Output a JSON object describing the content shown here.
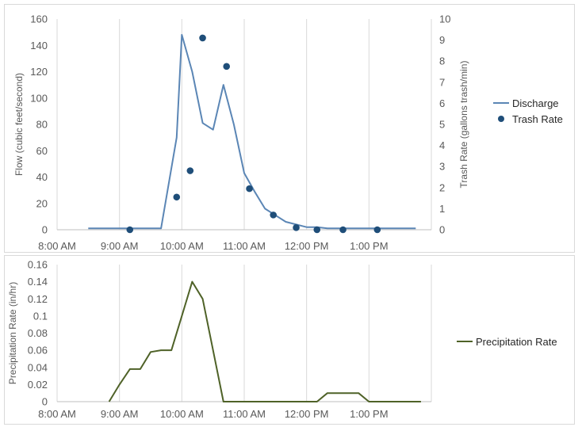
{
  "colors": {
    "discharge": "#5b86b5",
    "trash": "#1f4e79",
    "precip": "#4f6228",
    "grid": "#d9d9d9",
    "axis": "#bfbfbf",
    "text": "#595959"
  },
  "chart_data": [
    {
      "type": "line",
      "title": "",
      "xlabel": "",
      "ylabel": "Flow (cubic feet/second)",
      "y2label": "Trash Rate (gallons trash/min)",
      "x_ticks": [
        "8:00 AM",
        "9:00 AM",
        "10:00 AM",
        "11:00 AM",
        "12:00 PM",
        "1:00 PM"
      ],
      "xlim": [
        "8:00 AM",
        "2:00 PM"
      ],
      "ylim": [
        0,
        160
      ],
      "y_ticks": [
        0,
        20,
        40,
        60,
        80,
        100,
        120,
        140,
        160
      ],
      "y2lim": [
        0,
        10
      ],
      "y2_ticks": [
        0,
        1,
        2,
        3,
        4,
        5,
        6,
        7,
        8,
        9,
        10
      ],
      "grid": "vertical",
      "legend": "right",
      "series": [
        {
          "name": "Discharge",
          "kind": "line",
          "axis": "left",
          "x": [
            "8:30 AM",
            "9:40 AM",
            "9:55 AM",
            "10:00 AM",
            "10:10 AM",
            "10:20 AM",
            "10:30 AM",
            "10:40 AM",
            "10:50 AM",
            "11:00 AM",
            "11:10 AM",
            "11:20 AM",
            "11:30 AM",
            "11:40 AM",
            "11:50 AM",
            "12:00 PM",
            "12:10 PM",
            "12:20 PM",
            "12:30 PM",
            "1:00 PM",
            "1:30 PM",
            "1:45 PM"
          ],
          "values": [
            1,
            1,
            70,
            148,
            120,
            81,
            76,
            110,
            80,
            43,
            29,
            16,
            11,
            6,
            4,
            2,
            2,
            1,
            1,
            1,
            1,
            1
          ]
        },
        {
          "name": "Trash Rate",
          "kind": "scatter",
          "axis": "right",
          "x": [
            "9:10 AM",
            "9:55 AM",
            "10:08 AM",
            "10:20 AM",
            "10:43 AM",
            "11:05 AM",
            "11:28 AM",
            "11:50 AM",
            "12:10 PM",
            "12:35 PM",
            "1:08 PM"
          ],
          "values": [
            0,
            1.55,
            2.8,
            9.1,
            7.75,
            1.95,
            0.7,
            0.1,
            0,
            0,
            0
          ]
        }
      ]
    },
    {
      "type": "line",
      "title": "",
      "xlabel": "",
      "ylabel": "Precipitation Rate (in/hr)",
      "x_ticks": [
        "8:00 AM",
        "9:00 AM",
        "10:00 AM",
        "11:00 AM",
        "12:00 PM",
        "1:00 PM"
      ],
      "xlim": [
        "8:00 AM",
        "2:00 PM"
      ],
      "ylim": [
        0,
        0.16
      ],
      "y_ticks": [
        "0",
        "0.02",
        "0.04",
        "0.06",
        "0.08",
        "0.1",
        "0.12",
        "0.14",
        "0.16"
      ],
      "grid": "vertical",
      "legend": "right",
      "series": [
        {
          "name": "Precipitation Rate",
          "kind": "line",
          "x": [
            "8:50 AM",
            "9:00 AM",
            "9:10 AM",
            "9:20 AM",
            "9:30 AM",
            "9:40 AM",
            "9:50 AM",
            "10:00 AM",
            "10:10 AM",
            "10:20 AM",
            "10:30 AM",
            "10:40 AM",
            "10:50 AM",
            "11:00 AM",
            "11:10 AM",
            "11:20 AM",
            "11:30 AM",
            "11:40 AM",
            "11:50 AM",
            "12:00 PM",
            "12:10 PM",
            "12:20 PM",
            "12:30 PM",
            "12:40 PM",
            "12:50 PM",
            "1:00 PM",
            "1:10 PM",
            "1:20 PM",
            "1:30 PM",
            "1:40 PM",
            "1:50 PM"
          ],
          "values": [
            0,
            0.02,
            0.038,
            0.038,
            0.058,
            0.06,
            0.06,
            0.1,
            0.14,
            0.12,
            0.06,
            0,
            0,
            0,
            0,
            0,
            0,
            0,
            0,
            0,
            0,
            0.01,
            0.01,
            0.01,
            0.01,
            0,
            0,
            0,
            0,
            0,
            0
          ]
        }
      ]
    }
  ]
}
